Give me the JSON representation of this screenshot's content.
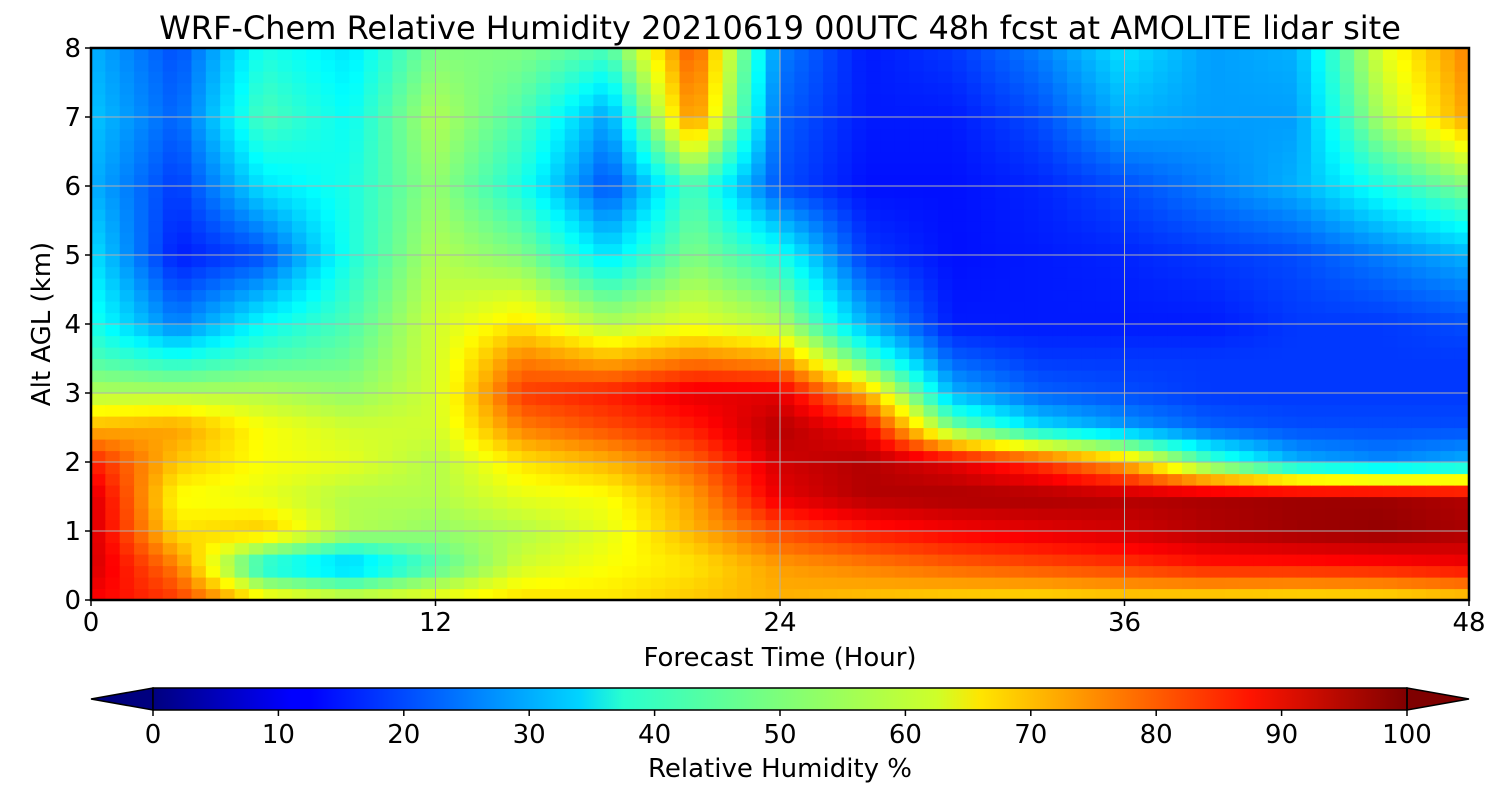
{
  "chart_data": {
    "type": "heatmap",
    "title": "WRF-Chem Relative Humidity 20210619 00UTC 48h fcst at AMOLITE lidar site",
    "xlabel": "Forecast Time (Hour)",
    "ylabel": "Alt AGL (km)",
    "xlim": [
      0,
      48
    ],
    "ylim": [
      0,
      8
    ],
    "xticks": [
      "0",
      "12",
      "24",
      "36",
      "48"
    ],
    "yticks": [
      "0",
      "1",
      "2",
      "3",
      "4",
      "5",
      "6",
      "7",
      "8"
    ],
    "grid": true,
    "colormap": "jet",
    "colorbar": {
      "label": "Relative Humidity %",
      "range": [
        0,
        100
      ],
      "ticks": [
        "0",
        "10",
        "20",
        "30",
        "40",
        "50",
        "60",
        "70",
        "80",
        "90",
        "100"
      ],
      "extend": "both",
      "orientation": "horizontal",
      "position": "bottom"
    },
    "x": [
      0,
      3,
      6,
      9,
      12,
      15,
      18,
      21,
      24,
      27,
      30,
      33,
      36,
      39,
      42,
      45,
      48
    ],
    "y": [
      0,
      0.5,
      1,
      1.5,
      2,
      2.5,
      3,
      3.5,
      4,
      5,
      6,
      7,
      8
    ],
    "values": [
      [
        88,
        82,
        65,
        60,
        62,
        66,
        65,
        68,
        70,
        68,
        66,
        65,
        66,
        65,
        64,
        64,
        66
      ],
      [
        92,
        75,
        38,
        30,
        45,
        58,
        62,
        65,
        72,
        75,
        78,
        80,
        82,
        85,
        85,
        86,
        88
      ],
      [
        92,
        65,
        68,
        55,
        52,
        55,
        60,
        70,
        80,
        85,
        88,
        90,
        92,
        95,
        97,
        98,
        96
      ],
      [
        92,
        62,
        60,
        55,
        55,
        60,
        62,
        72,
        90,
        95,
        96,
        96,
        95,
        96,
        97,
        97,
        95
      ],
      [
        85,
        68,
        62,
        60,
        55,
        65,
        70,
        78,
        92,
        95,
        90,
        82,
        70,
        45,
        30,
        26,
        30
      ],
      [
        70,
        72,
        62,
        58,
        58,
        75,
        80,
        85,
        95,
        88,
        50,
        35,
        28,
        22,
        20,
        20,
        20
      ],
      [
        55,
        55,
        55,
        52,
        58,
        82,
        85,
        90,
        90,
        70,
        30,
        22,
        20,
        18,
        18,
        18,
        18
      ],
      [
        45,
        40,
        45,
        48,
        58,
        75,
        70,
        75,
        72,
        45,
        22,
        18,
        18,
        18,
        18,
        18,
        18
      ],
      [
        40,
        25,
        38,
        45,
        58,
        65,
        55,
        60,
        55,
        30,
        15,
        15,
        15,
        15,
        18,
        18,
        20
      ],
      [
        35,
        15,
        20,
        40,
        55,
        50,
        35,
        50,
        40,
        18,
        14,
        15,
        16,
        18,
        20,
        25,
        30
      ],
      [
        30,
        18,
        35,
        40,
        52,
        40,
        20,
        45,
        20,
        14,
        14,
        16,
        20,
        25,
        30,
        40,
        50
      ],
      [
        32,
        22,
        45,
        38,
        55,
        45,
        28,
        75,
        22,
        15,
        15,
        20,
        30,
        28,
        28,
        55,
        72
      ],
      [
        30,
        20,
        40,
        35,
        50,
        50,
        45,
        80,
        25,
        15,
        18,
        25,
        35,
        28,
        30,
        60,
        75
      ]
    ]
  }
}
